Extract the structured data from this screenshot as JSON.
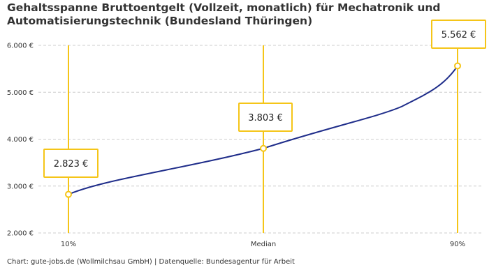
{
  "chart": {
    "title": "Gehaltsspanne Bruttoentgelt (Vollzeit, monatlich) für Mechatronik und Automatisierungstechnik (Bundesland Thüringen)",
    "footer": "Chart: gute-jobs.de (Wollmilchsau GmbH) | Datenquelle: Bundesagentur für Arbeit"
  },
  "chart_data": {
    "type": "line",
    "categories": [
      "10%",
      "Median",
      "90%"
    ],
    "values": [
      2823,
      3803,
      5562
    ],
    "value_labels": [
      "2.823 €",
      "3.803 €",
      "5.562 €"
    ],
    "ylim": [
      2000,
      6000
    ],
    "yticks": [
      2000,
      3000,
      4000,
      5000,
      6000
    ],
    "ytick_labels": [
      "2.000 €",
      "3.000 €",
      "4.000 €",
      "5.000 €",
      "6.000 €"
    ],
    "grid": true,
    "colors": {
      "line": "#1f2d8a",
      "accent": "#f5c518",
      "grid": "#cccccc"
    }
  }
}
